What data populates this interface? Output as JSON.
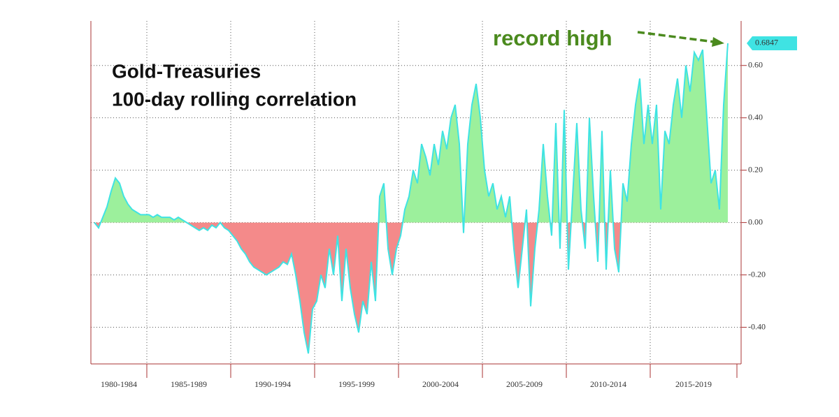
{
  "chart_data": {
    "type": "area",
    "title": [
      "Gold-Treasuries",
      "100-day rolling correlation"
    ],
    "annotation": "record high",
    "categories": [
      "1980-1984",
      "1985-1989",
      "1990-1994",
      "1995-1999",
      "2000-2004",
      "2005-2009",
      "2010-2014",
      "2015-2019"
    ],
    "values": [
      [
        0.0,
        -0.02,
        0.02,
        0.06,
        0.12,
        0.17,
        0.15,
        0.1,
        0.07,
        0.05,
        0.04,
        0.03,
        0.03
      ],
      [
        0.03,
        0.02,
        0.03,
        0.02,
        0.02,
        0.02,
        0.01,
        0.02,
        0.01,
        0.0,
        -0.01,
        -0.02,
        -0.03,
        -0.02,
        -0.03,
        -0.01,
        -0.02,
        0.0,
        -0.02,
        -0.03
      ],
      [
        -0.05,
        -0.07,
        -0.1,
        -0.12,
        -0.15,
        -0.17,
        -0.18,
        -0.19,
        -0.2,
        -0.19,
        -0.18,
        -0.17,
        -0.15,
        -0.16,
        -0.12,
        -0.2,
        -0.3,
        -0.42,
        -0.5,
        -0.33
      ],
      [
        -0.3,
        -0.2,
        -0.25,
        -0.1,
        -0.2,
        -0.05,
        -0.3,
        -0.1,
        -0.25,
        -0.35,
        -0.42,
        -0.3,
        -0.35,
        -0.15,
        -0.3,
        0.1,
        0.15,
        -0.1,
        -0.2,
        -0.1
      ],
      [
        -0.05,
        0.05,
        0.1,
        0.2,
        0.15,
        0.3,
        0.25,
        0.18,
        0.3,
        0.22,
        0.35,
        0.28,
        0.4,
        0.45,
        0.3,
        -0.04,
        0.3,
        0.45,
        0.53,
        0.4
      ],
      [
        0.2,
        0.1,
        0.15,
        0.05,
        0.1,
        0.02,
        0.1,
        -0.1,
        -0.25,
        -0.1,
        0.05,
        -0.32,
        -0.1,
        0.05,
        0.3,
        0.1,
        -0.05,
        0.38,
        -0.1,
        0.43
      ],
      [
        -0.18,
        0.1,
        0.38,
        0.05,
        -0.1,
        0.4,
        0.1,
        -0.15,
        0.35,
        -0.18,
        0.2,
        -0.1,
        -0.19,
        0.15,
        0.08,
        0.3,
        0.45,
        0.55,
        0.3,
        0.45
      ],
      [
        0.3,
        0.45,
        0.05,
        0.35,
        0.3,
        0.45,
        0.55,
        0.4,
        0.6,
        0.5,
        0.65,
        0.62,
        0.66,
        0.4,
        0.15,
        0.2,
        0.05,
        0.45,
        0.6847
      ]
    ],
    "color": "#3fe3e3",
    "positive_color": "#9cf09c",
    "negative_color": "#f48a8a",
    "annotation_color": "#4b8a1e",
    "ylim": [
      -0.54,
      0.77
    ],
    "yticks": [
      {
        "value": -0.4,
        "label": "-0.40"
      },
      {
        "value": -0.2,
        "label": "-0.20"
      },
      {
        "value": 0,
        "label": "0.00"
      },
      {
        "value": 0.2,
        "label": "0.20"
      },
      {
        "value": 0.4,
        "label": "0.40"
      },
      {
        "value": 0.6,
        "label": "0.60"
      }
    ],
    "grid": true
  }
}
